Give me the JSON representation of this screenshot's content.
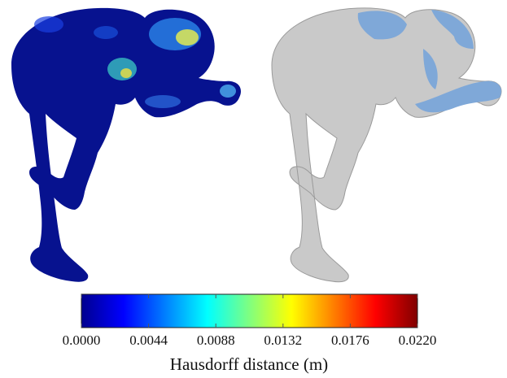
{
  "colorbar": {
    "label": "Hausdorff distance (m)",
    "lim": [
      0,
      0.022
    ],
    "ticks": [
      {
        "value": 0,
        "label": "0.0000"
      },
      {
        "value": 0.0044,
        "label": "0.0044"
      },
      {
        "value": 0.0088,
        "label": "0.0088"
      },
      {
        "value": 0.0132,
        "label": "0.0132"
      },
      {
        "value": 0.0176,
        "label": "0.0176"
      },
      {
        "value": 0.022,
        "label": "0.0220"
      }
    ]
  }
}
